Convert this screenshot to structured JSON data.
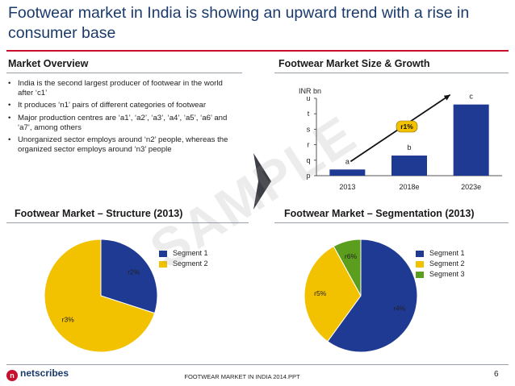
{
  "title": "Footwear market in India is showing an upward trend with a rise in consumer base",
  "colors": {
    "navy": "#1f3a93",
    "yellow": "#f2c100",
    "green": "#5b9e1e",
    "accent_red": "#c8102e"
  },
  "market_overview": {
    "heading": "Market Overview",
    "bullets": [
      "India is the second largest producer of footwear in the world after ‘c1’",
      "It produces ‘n1’ pairs of different categories of footwear",
      "Major production centres are ‘a1’, ‘a2’, ‘a3’, ‘a4’, ‘a5’, ‘a6’ and ‘a7’, among others",
      "Unorganized sector employs around ‘n2’ people, whereas the organized sector employs around ‘n3’ people"
    ]
  },
  "size_growth": {
    "heading": "Footwear Market Size & Growth"
  },
  "structure": {
    "heading": "Footwear Market – Structure (2013)"
  },
  "segmentation": {
    "heading": "Footwear Market – Segmentation (2013)"
  },
  "watermark": "SAMPLE",
  "footer": {
    "logo": "netscribes",
    "center": "FOOTWEAR MARKET IN INDIA 2014.PPT",
    "page": "6"
  },
  "chart_data": [
    {
      "type": "bar",
      "ylabel": "INR bn",
      "categories": [
        "2013",
        "2018e",
        "2023e"
      ],
      "values": [
        0.4,
        1.3,
        4.6
      ],
      "data_labels": [
        "a",
        "b",
        "c"
      ],
      "ytick_labels": [
        "p",
        "q",
        "r",
        "s",
        "t",
        "u"
      ],
      "ylim": [
        0,
        5
      ],
      "annotation": "r1%",
      "grid": false
    },
    {
      "type": "pie",
      "labels": [
        "Segment 1",
        "Segment 2"
      ],
      "values": [
        30,
        70
      ],
      "data_labels": [
        "r2%",
        "r3%"
      ],
      "colors": [
        "#1f3a93",
        "#f2c100"
      ],
      "legend": "right"
    },
    {
      "type": "pie",
      "labels": [
        "Segment 1",
        "Segment 2",
        "Segment 3"
      ],
      "values": [
        60,
        32,
        8
      ],
      "data_labels": [
        "r4%",
        "r5%",
        "r6%"
      ],
      "colors": [
        "#1f3a93",
        "#f2c100",
        "#5b9e1e"
      ],
      "legend": "right"
    }
  ]
}
